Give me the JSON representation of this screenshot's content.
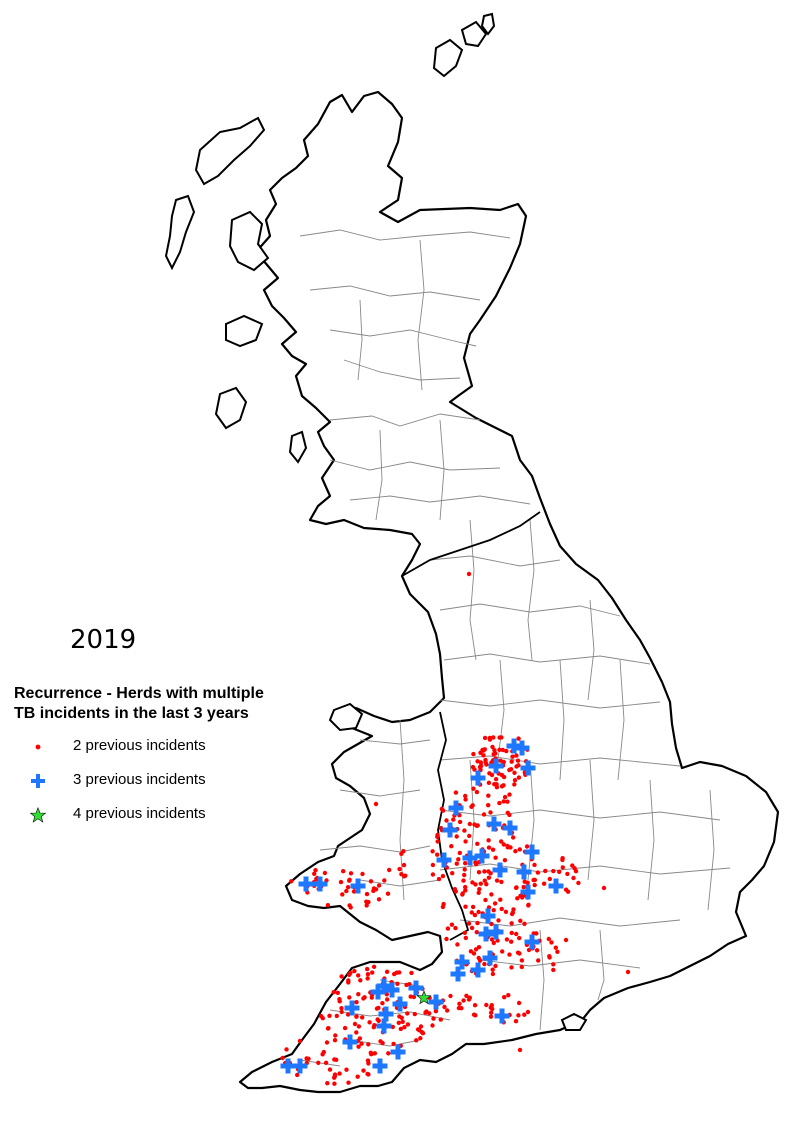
{
  "map": {
    "year": "2019",
    "legend": {
      "title_line1": "Recurrence - Herds with multiple",
      "title_line2": "TB incidents in the last 3 years",
      "items": [
        {
          "label": "2 previous incidents",
          "symbol": "dot",
          "color": "#ff0000"
        },
        {
          "label": "3 previous incidents",
          "symbol": "cross",
          "color": "#1e78ff"
        },
        {
          "label": "4 previous incidents",
          "symbol": "star",
          "color": "#33dd33"
        }
      ]
    },
    "colors": {
      "outline": "#000000",
      "boundaries": "#888888",
      "background": "#ffffff"
    }
  }
}
